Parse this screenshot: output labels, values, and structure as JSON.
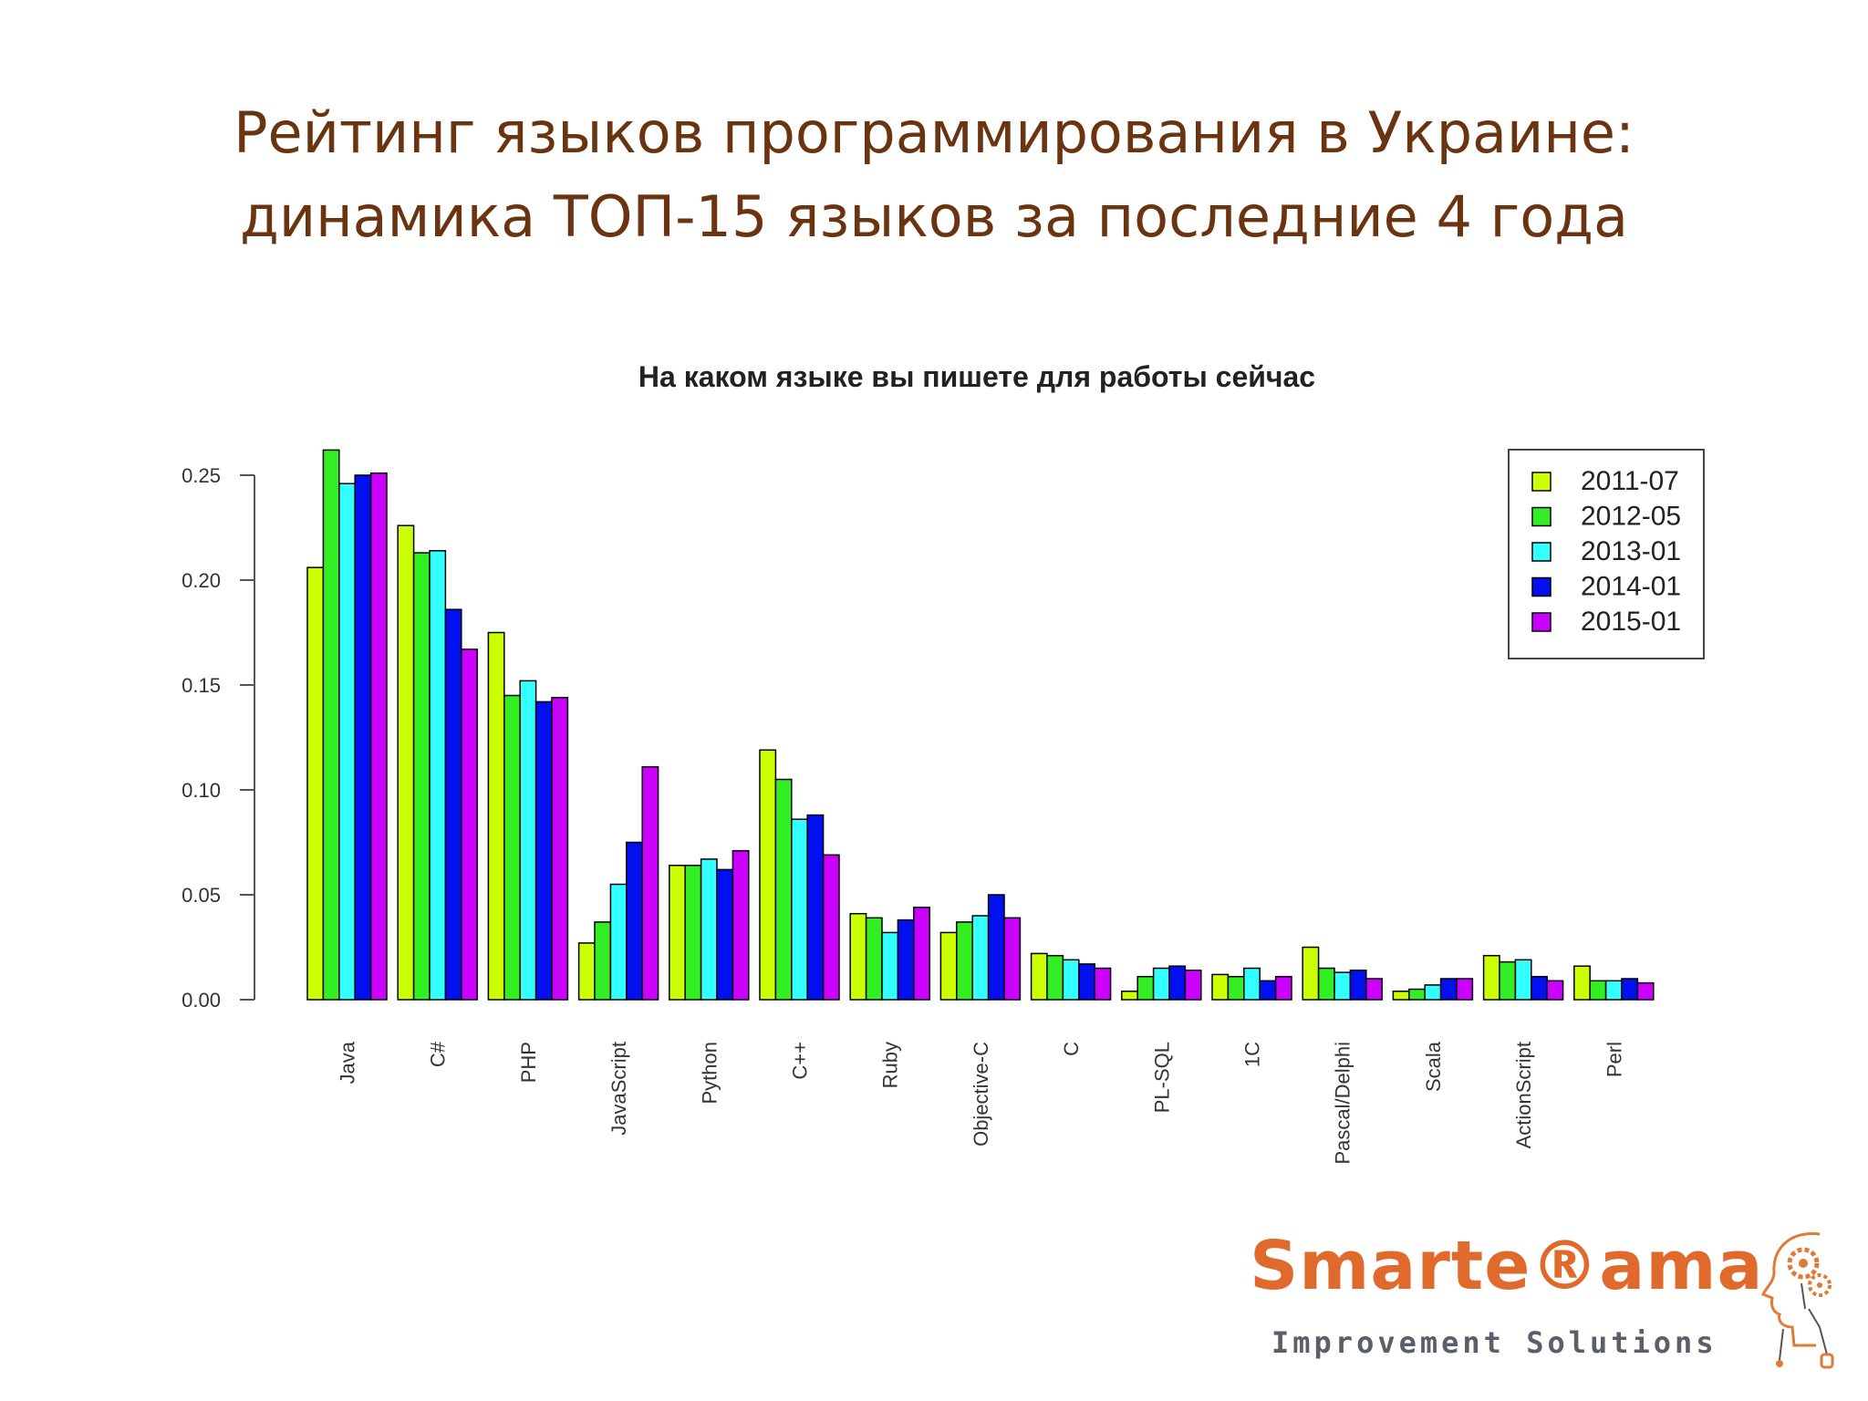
{
  "slide": {
    "title_line1": "Рейтинг языков программирования в Украине:",
    "title_line2": "динамика ТОП-15 языков за последние 4 года"
  },
  "logo": {
    "wordmark": "Smarte®ama",
    "tagline": "Improvement Solutions"
  },
  "chart_data": {
    "type": "bar",
    "title": "На каком языке вы пишете для работы сейчас",
    "xlabel": "",
    "ylabel": "",
    "ylim": [
      0,
      0.27
    ],
    "yticks": [
      "0.00",
      "0.05",
      "0.10",
      "0.15",
      "0.20",
      "0.25"
    ],
    "legend_position": "top-right",
    "categories": [
      "Java",
      "C#",
      "PHP",
      "JavaScript",
      "Python",
      "C++",
      "Ruby",
      "Objective-C",
      "C",
      "PL-SQL",
      "1C",
      "Pascal/Delphi",
      "Scala",
      "ActionScript",
      "Perl"
    ],
    "series": [
      {
        "name": "2011-07",
        "color": "#ccff00",
        "values": [
          0.206,
          0.226,
          0.175,
          0.027,
          0.064,
          0.119,
          0.041,
          0.032,
          0.022,
          0.004,
          0.012,
          0.025,
          0.004,
          0.021,
          0.016
        ]
      },
      {
        "name": "2012-05",
        "color": "#33ee22",
        "values": [
          0.262,
          0.213,
          0.145,
          0.037,
          0.064,
          0.105,
          0.039,
          0.037,
          0.021,
          0.011,
          0.011,
          0.015,
          0.005,
          0.018,
          0.009
        ]
      },
      {
        "name": "2013-01",
        "color": "#33ffff",
        "values": [
          0.246,
          0.214,
          0.152,
          0.055,
          0.067,
          0.086,
          0.032,
          0.04,
          0.019,
          0.015,
          0.015,
          0.013,
          0.007,
          0.019,
          0.009
        ]
      },
      {
        "name": "2014-01",
        "color": "#0010ee",
        "values": [
          0.25,
          0.186,
          0.142,
          0.075,
          0.062,
          0.088,
          0.038,
          0.05,
          0.017,
          0.016,
          0.009,
          0.014,
          0.01,
          0.011,
          0.01
        ]
      },
      {
        "name": "2015-01",
        "color": "#cc00ff",
        "values": [
          0.251,
          0.167,
          0.144,
          0.111,
          0.071,
          0.069,
          0.044,
          0.039,
          0.015,
          0.014,
          0.011,
          0.01,
          0.01,
          0.009,
          0.008
        ]
      }
    ]
  }
}
